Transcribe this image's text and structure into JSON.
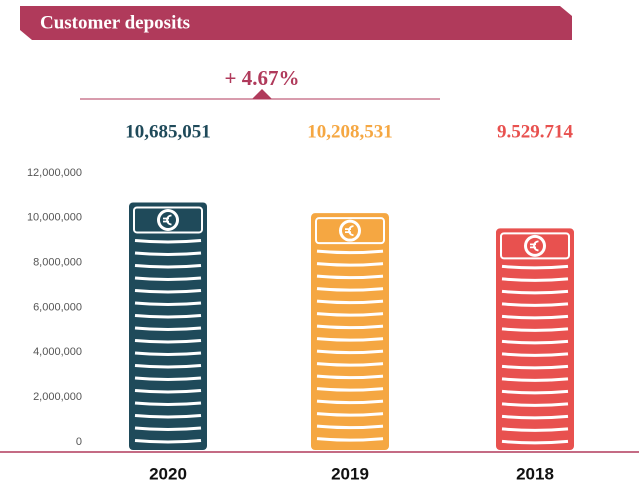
{
  "chart_data": {
    "type": "bar",
    "title": "Customer deposits",
    "annotation": "+ 4.67%",
    "categories": [
      "2020",
      "2019",
      "2018"
    ],
    "values": [
      10685051,
      10208531,
      9529714
    ],
    "value_labels": [
      "10,685,051",
      "10,208,531",
      "9.529.714"
    ],
    "colors": [
      "#1f4a5a",
      "#f5a742",
      "#e8514f"
    ],
    "ylim": [
      0,
      12000000
    ],
    "yticks": [
      0,
      {
        "value": 2000000,
        "label": "2,000,000"
      },
      {
        "value": 4000000,
        "label": "4,000,000"
      },
      {
        "value": 6000000,
        "label": "6,000,000"
      },
      {
        "value": 8000000,
        "label": "8,000,000"
      },
      {
        "value": 10000000,
        "label": "10,000,000"
      },
      {
        "value": 12000000,
        "label": "12,000,000"
      }
    ],
    "grid": false
  }
}
